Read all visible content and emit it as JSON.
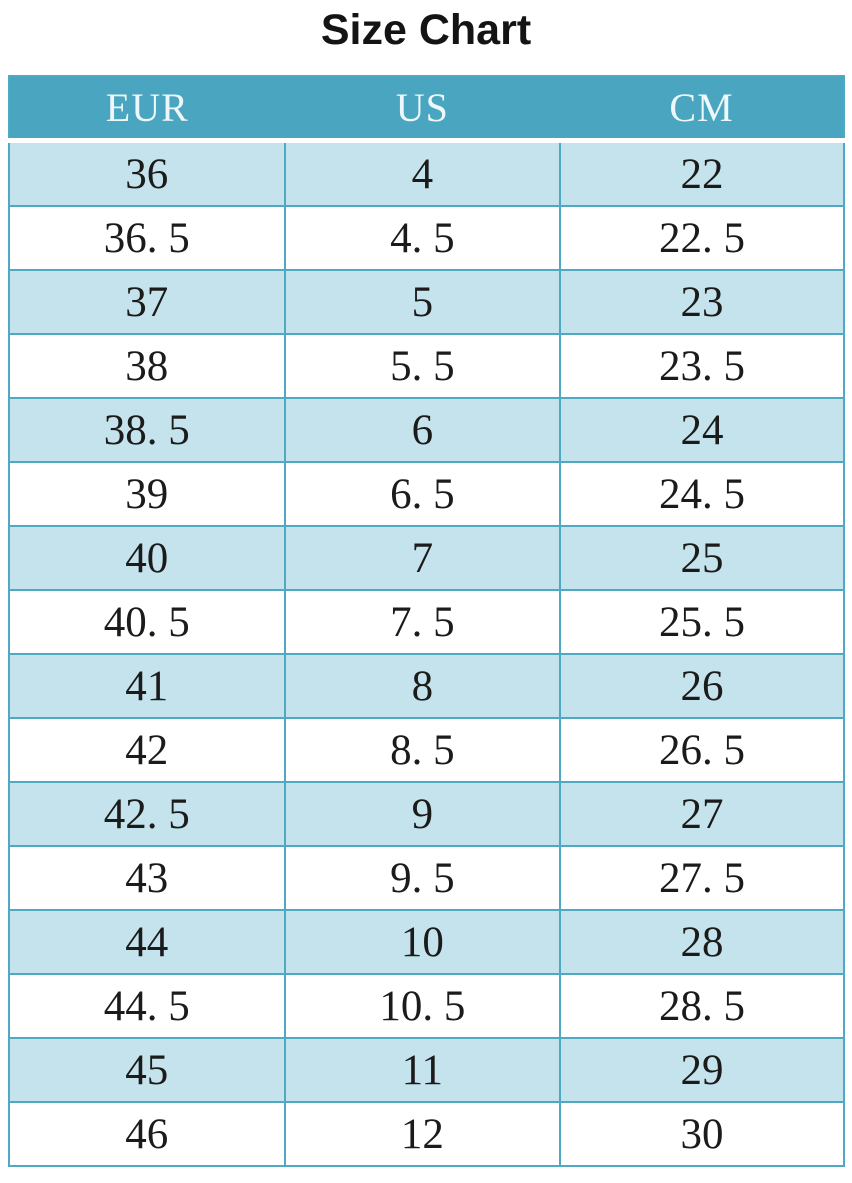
{
  "title": "Size Chart",
  "colors": {
    "header_bg": "#4aa6c0",
    "header_text": "#eef7f9",
    "stripe_bg": "#c5e3ec",
    "border": "#4fa9c3",
    "title_text": "#141414",
    "cell_text": "#1b1b1b",
    "page_bg": "#ffffff"
  },
  "table": {
    "columns": [
      "EUR",
      "US",
      "CM"
    ],
    "rows": [
      [
        "36",
        "4",
        "22"
      ],
      [
        "36. 5",
        "4. 5",
        "22. 5"
      ],
      [
        "37",
        "5",
        "23"
      ],
      [
        "38",
        "5. 5",
        "23. 5"
      ],
      [
        "38. 5",
        "6",
        "24"
      ],
      [
        "39",
        "6. 5",
        "24. 5"
      ],
      [
        "40",
        "7",
        "25"
      ],
      [
        "40. 5",
        "7. 5",
        "25. 5"
      ],
      [
        "41",
        "8",
        "26"
      ],
      [
        "42",
        "8. 5",
        "26. 5"
      ],
      [
        "42. 5",
        "9",
        "27"
      ],
      [
        "43",
        "9. 5",
        "27. 5"
      ],
      [
        "44",
        "10",
        "28"
      ],
      [
        "44. 5",
        "10. 5",
        "28. 5"
      ],
      [
        "45",
        "11",
        "29"
      ],
      [
        "46",
        "12",
        "30"
      ]
    ]
  },
  "chart_data": {
    "type": "table",
    "title": "Size Chart",
    "columns": [
      "EUR",
      "US",
      "CM"
    ],
    "rows_numeric": [
      [
        36,
        4,
        22
      ],
      [
        36.5,
        4.5,
        22.5
      ],
      [
        37,
        5,
        23
      ],
      [
        38,
        5.5,
        23.5
      ],
      [
        38.5,
        6,
        24
      ],
      [
        39,
        6.5,
        24.5
      ],
      [
        40,
        7,
        25
      ],
      [
        40.5,
        7.5,
        25.5
      ],
      [
        41,
        8,
        26
      ],
      [
        42,
        8.5,
        26.5
      ],
      [
        42.5,
        9,
        27
      ],
      [
        43,
        9.5,
        27.5
      ],
      [
        44,
        10,
        28
      ],
      [
        44.5,
        10.5,
        28.5
      ],
      [
        45,
        11,
        29
      ],
      [
        46,
        12,
        30
      ]
    ],
    "layout": {
      "header_position": "top",
      "row_striping": "odd-rows-light-blue",
      "alignment": "center"
    }
  }
}
